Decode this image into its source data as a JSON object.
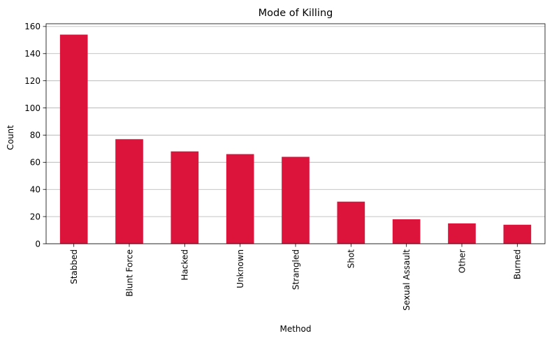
{
  "chart_data": {
    "type": "bar",
    "title": "Mode of Killing",
    "xlabel": "Method",
    "ylabel": "Count",
    "categories": [
      "Stabbed",
      "Blunt Force",
      "Hacked",
      "Unknown",
      "Strangled",
      "Shot",
      "Sexual Assault",
      "Other",
      "Burned"
    ],
    "values": [
      154,
      77,
      68,
      66,
      64,
      31,
      18,
      15,
      14
    ],
    "ylim": [
      0,
      162
    ],
    "yticks": [
      0,
      20,
      40,
      60,
      80,
      100,
      120,
      140,
      160
    ],
    "grid": "y",
    "legend": "none",
    "bar_color": "#DC143C",
    "grid_color": "#b0b0b0"
  }
}
